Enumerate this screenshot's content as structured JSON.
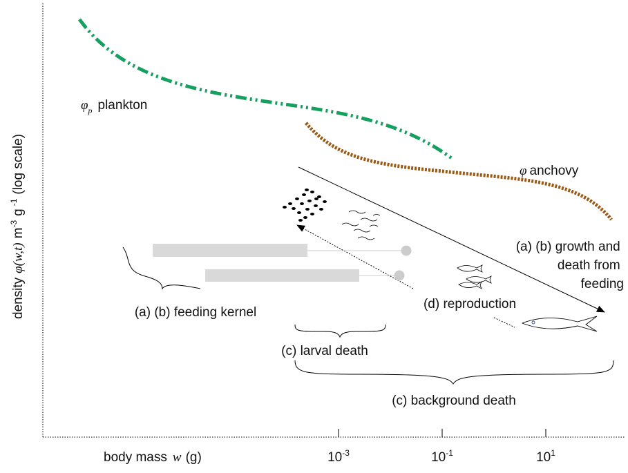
{
  "axes": {
    "x_label": {
      "word": "body mass",
      "var": "w",
      "unit": "(g)"
    },
    "x_ticks": [
      {
        "base": "10",
        "exp": "-3"
      },
      {
        "base": "10",
        "exp": "-1"
      },
      {
        "base": "10",
        "exp": "1"
      }
    ],
    "y_label": {
      "word": "density",
      "symbol": "φ(w,t)",
      "unit1": "m",
      "exp1": "-3",
      "unit2": "g",
      "exp2": "-1",
      "note": "(log scale)"
    }
  },
  "curves": {
    "plankton": {
      "symbol": "φ",
      "sub": "p",
      "text": "plankton"
    },
    "anchovy": {
      "symbol": "φ",
      "text": "anchovy"
    }
  },
  "processes": {
    "growth": [
      "(a) (b) growth and",
      "death from",
      "feeding"
    ],
    "feeding_kernel": "(a) (b) feeding kernel",
    "reproduction": "(d) reproduction",
    "larval_death": "(c) larval death",
    "background_death": "(c) background death"
  }
}
